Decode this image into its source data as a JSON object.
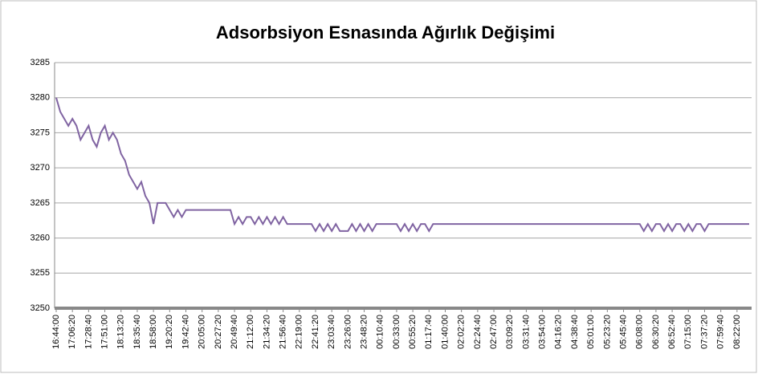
{
  "chart_data": {
    "type": "line",
    "title": "Adsorbsiyon Esnasında Ağırlık Değişimi",
    "categories": [
      "16:44:00",
      null,
      null,
      null,
      "17:06:20",
      null,
      null,
      null,
      "17:28:40",
      null,
      null,
      null,
      "17:51:00",
      null,
      null,
      null,
      "18:13:20",
      null,
      null,
      null,
      "18:35:40",
      null,
      null,
      null,
      "18:58:00",
      null,
      null,
      null,
      "19:20:20",
      null,
      null,
      null,
      "19:42:40",
      null,
      null,
      null,
      "20:05:00",
      null,
      null,
      null,
      "20:27:20",
      null,
      null,
      null,
      "20:49:40",
      null,
      null,
      null,
      "21:12:00",
      null,
      null,
      null,
      "21:34:20",
      null,
      null,
      null,
      "21:56:40",
      null,
      null,
      null,
      "22:19:00",
      null,
      null,
      null,
      "22:41:20",
      null,
      null,
      null,
      "23:03:40",
      null,
      null,
      null,
      "23:26:00",
      null,
      null,
      null,
      "23:48:20",
      null,
      null,
      null,
      "00:10:40",
      null,
      null,
      null,
      "00:33:00",
      null,
      null,
      null,
      "00:55:20",
      null,
      null,
      null,
      "01:17:40",
      null,
      null,
      null,
      "01:40:00",
      null,
      null,
      null,
      "02:02:20",
      null,
      null,
      null,
      "02:24:40",
      null,
      null,
      null,
      "02:47:00",
      null,
      null,
      null,
      "03:09:20",
      null,
      null,
      null,
      "03:31:40",
      null,
      null,
      null,
      "03:54:00",
      null,
      null,
      null,
      "04:16:20",
      null,
      null,
      null,
      "04:38:40",
      null,
      null,
      null,
      "05:01:00",
      null,
      null,
      null,
      "05:23:20",
      null,
      null,
      null,
      "05:45:40",
      null,
      null,
      null,
      "06:08:00",
      null,
      null,
      null,
      "06:30:20",
      null,
      null,
      null,
      "06:52:40",
      null,
      null,
      null,
      "07:15:00",
      null,
      null,
      null,
      "07:37:20",
      null,
      null,
      null,
      "07:59:40",
      null,
      null,
      null,
      "08:22:00",
      null,
      null,
      null
    ],
    "series": [
      {
        "color": "#8064a2",
        "values": [
          3280,
          3278,
          3277,
          3276,
          3277,
          3276,
          3274,
          3275,
          3276,
          3274,
          3273,
          3275,
          3276,
          3274,
          3275,
          3274,
          3272,
          3271,
          3269,
          3268,
          3267,
          3268,
          3266,
          3265,
          3262,
          3265,
          3265,
          3265,
          3264,
          3263,
          3264,
          3263,
          3264,
          3264,
          3264,
          3264,
          3264,
          3264,
          3264,
          3264,
          3264,
          3264,
          3264,
          3264,
          3262,
          3263,
          3262,
          3263,
          3263,
          3262,
          3263,
          3262,
          3263,
          3262,
          3263,
          3262,
          3263,
          3262,
          3262,
          3262,
          3262,
          3262,
          3262,
          3262,
          3261,
          3262,
          3261,
          3262,
          3261,
          3262,
          3261,
          3261,
          3261,
          3262,
          3261,
          3262,
          3261,
          3262,
          3261,
          3262,
          3262,
          3262,
          3262,
          3262,
          3262,
          3261,
          3262,
          3261,
          3262,
          3261,
          3262,
          3262,
          3261,
          3262,
          3262,
          3262,
          3262,
          3262,
          3262,
          3262,
          3262,
          3262,
          3262,
          3262,
          3262,
          3262,
          3262,
          3262,
          3262,
          3262,
          3262,
          3262,
          3262,
          3262,
          3262,
          3262,
          3262,
          3262,
          3262,
          3262,
          3262,
          3262,
          3262,
          3262,
          3262,
          3262,
          3262,
          3262,
          3262,
          3262,
          3262,
          3262,
          3262,
          3262,
          3262,
          3262,
          3262,
          3262,
          3262,
          3262,
          3262,
          3262,
          3262,
          3262,
          3262,
          3261,
          3262,
          3261,
          3262,
          3262,
          3261,
          3262,
          3261,
          3262,
          3262,
          3261,
          3262,
          3261,
          3262,
          3262,
          3261,
          3262,
          3262,
          3262,
          3262,
          3262,
          3262,
          3262,
          3262,
          3262,
          3262,
          3262
        ]
      }
    ],
    "ylim": [
      3250,
      3285
    ],
    "yticks": [
      3250,
      3255,
      3260,
      3265,
      3270,
      3275,
      3280,
      3285
    ],
    "grid": true
  }
}
